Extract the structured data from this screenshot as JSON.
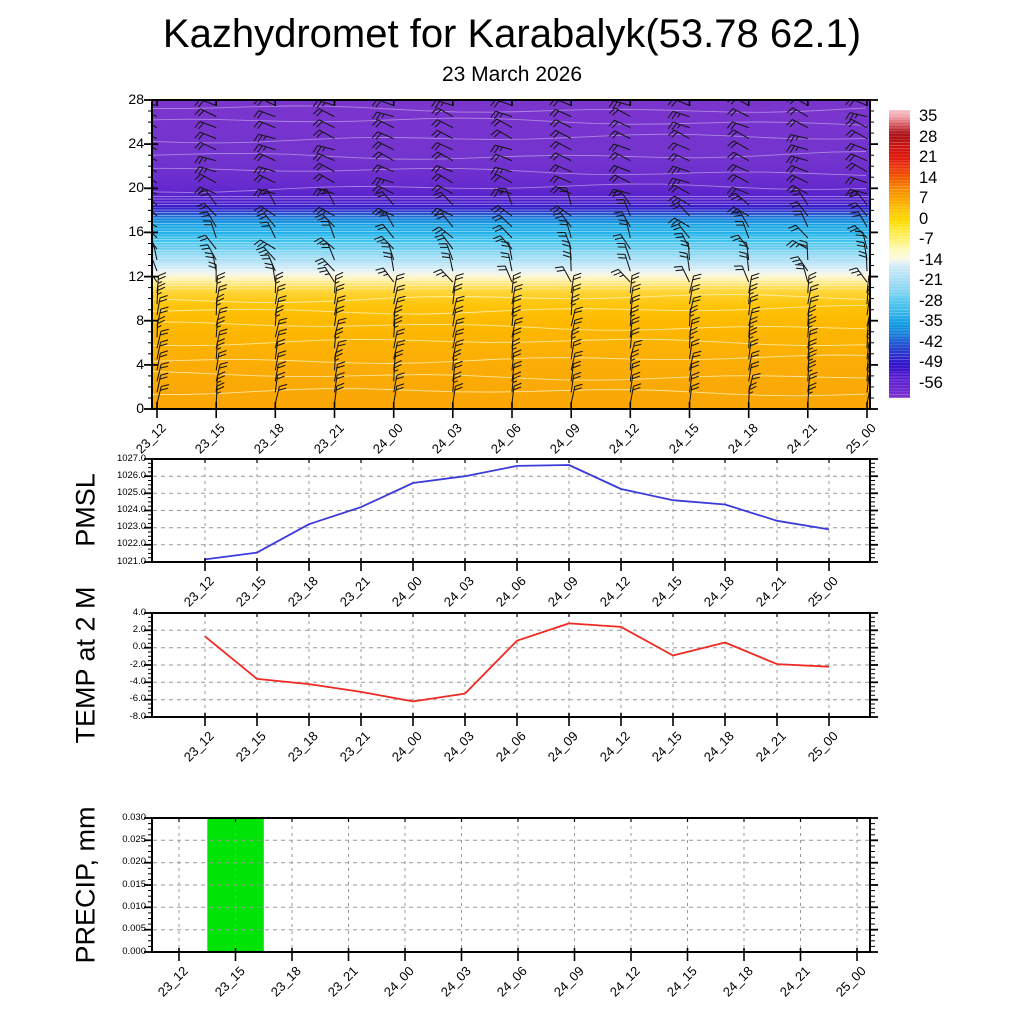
{
  "header": {
    "title": "Kazhydromet for Karabalyk(53.78 62.1)",
    "subtitle": "23 March 2026"
  },
  "time_labels": [
    "23_12",
    "23_15",
    "23_18",
    "23_21",
    "24_00",
    "24_03",
    "24_06",
    "24_09",
    "24_12",
    "24_15",
    "24_18",
    "24_21",
    "25_00"
  ],
  "chart_data": [
    {
      "id": "temperature-wind-profile",
      "type": "heatmap",
      "ylabel": "",
      "ylim": [
        0,
        28
      ],
      "y_tick_labels": [
        "0",
        "4",
        "8",
        "12",
        "16",
        "20",
        "24",
        "28"
      ],
      "y_tick_values": [
        0,
        4,
        8,
        12,
        16,
        20,
        24,
        28
      ],
      "description": "Vertical temperature cross-section (model level vs time) with wind barbs; warm orange/yellow below ~level 11, sharp cold transition levels 12-18, purple above level 19",
      "gradient_stops": [
        {
          "level": 0,
          "color": "#FAA607"
        },
        {
          "level": 4,
          "color": "#FBAD06"
        },
        {
          "level": 8,
          "color": "#FDBA00"
        },
        {
          "level": 9.5,
          "color": "#FEC60D"
        },
        {
          "level": 10.5,
          "color": "#FFD333"
        },
        {
          "level": 11.2,
          "color": "#FFE266"
        },
        {
          "level": 11.7,
          "color": "#FFEFA3"
        },
        {
          "level": 12.05,
          "color": "#FCF7D8"
        },
        {
          "level": 12.4,
          "color": "#EBF3F2"
        },
        {
          "level": 12.9,
          "color": "#C7E8F7"
        },
        {
          "level": 13.7,
          "color": "#9FDCF5"
        },
        {
          "level": 14.5,
          "color": "#6FCFF1"
        },
        {
          "level": 15.3,
          "color": "#3EC2EE"
        },
        {
          "level": 16.1,
          "color": "#1EAFE8"
        },
        {
          "level": 16.75,
          "color": "#159EE2"
        },
        {
          "level": 17.25,
          "color": "#1A80DB"
        },
        {
          "level": 17.65,
          "color": "#2556D3"
        },
        {
          "level": 18.0,
          "color": "#2D30CB"
        },
        {
          "level": 18.35,
          "color": "#3A1CCA"
        },
        {
          "level": 18.9,
          "color": "#4D1DCC"
        },
        {
          "level": 19.5,
          "color": "#5D25CE"
        },
        {
          "level": 20.6,
          "color": "#6A2DCE"
        },
        {
          "level": 23,
          "color": "#7434CE"
        },
        {
          "level": 28,
          "color": "#7B35CD"
        }
      ],
      "contour_line_levels_warm": [
        1.5,
        3,
        4.5,
        6,
        7.5,
        9,
        10
      ],
      "contour_line_levels_cold": [
        20,
        21.5,
        23,
        24.5,
        26,
        27.2
      ],
      "wind_bands": [
        {
          "level_min": 0,
          "level_max": 10.5,
          "staff_angle": 82,
          "tick_angle": -62,
          "jitter_deg": 6
        },
        {
          "level_min": 10.5,
          "level_max": 13.5,
          "staff_angle": 112,
          "tick_angle": 70,
          "jitter_deg": 22
        },
        {
          "level_min": 13.5,
          "level_max": 18.5,
          "staff_angle": 128,
          "tick_angle": 70,
          "jitter_deg": 26
        },
        {
          "level_min": 18.5,
          "level_max": 28,
          "staff_angle": 158,
          "tick_angle": 72,
          "jitter_deg": 9
        }
      ],
      "colorbar": {
        "labels": [
          "35",
          "28",
          "21",
          "14",
          "7",
          "0",
          "-7",
          "-14",
          "-21",
          "-28",
          "-35",
          "-42",
          "-49",
          "-56"
        ],
        "value_top": 37.5,
        "value_bottom": -60.5,
        "stops": [
          {
            "v": 37.5,
            "c": "#F6C3C9"
          },
          {
            "v": 35,
            "c": "#EF9FA6"
          },
          {
            "v": 33,
            "c": "#D96168"
          },
          {
            "v": 31,
            "c": "#C03238"
          },
          {
            "v": 29.5,
            "c": "#AC181D"
          },
          {
            "v": 28,
            "c": "#B01215"
          },
          {
            "v": 25,
            "c": "#CC1313"
          },
          {
            "v": 21,
            "c": "#E31A0D"
          },
          {
            "v": 17.5,
            "c": "#ED3806"
          },
          {
            "v": 14,
            "c": "#F26000"
          },
          {
            "v": 10.5,
            "c": "#F78A00"
          },
          {
            "v": 7,
            "c": "#FCA700"
          },
          {
            "v": 3.5,
            "c": "#FFC100"
          },
          {
            "v": 0,
            "c": "#FFDA00"
          },
          {
            "v": -3.5,
            "c": "#FFE93A"
          },
          {
            "v": -7,
            "c": "#FFF37E"
          },
          {
            "v": -10.5,
            "c": "#FEFABF"
          },
          {
            "v": -13,
            "c": "#FBFBE0"
          },
          {
            "v": -14,
            "c": "#EDF5F2"
          },
          {
            "v": -16,
            "c": "#CDE9F7"
          },
          {
            "v": -21,
            "c": "#A3DDF5"
          },
          {
            "v": -28,
            "c": "#55C8EF"
          },
          {
            "v": -35,
            "c": "#14A0E3"
          },
          {
            "v": -38.5,
            "c": "#127FDA"
          },
          {
            "v": -42,
            "c": "#2358D2"
          },
          {
            "v": -45.5,
            "c": "#2B31CB"
          },
          {
            "v": -49,
            "c": "#2F15CB"
          },
          {
            "v": -52.5,
            "c": "#4C17CE"
          },
          {
            "v": -56,
            "c": "#6524D0"
          },
          {
            "v": -60.5,
            "c": "#7C33CE"
          }
        ]
      }
    },
    {
      "id": "pmsl",
      "type": "line",
      "ylabel": "PMSL",
      "color": "#3B3BDA",
      "ylim": [
        1021,
        1027
      ],
      "y_tick_labels": [
        "1021.0",
        "1022.0",
        "1023.0",
        "1024.0",
        "1025.0",
        "1026.0",
        "1027.0"
      ],
      "y_tick_values": [
        1021,
        1022,
        1023,
        1024,
        1025,
        1026,
        1027
      ],
      "values": [
        1021.15,
        1021.55,
        1023.2,
        1024.2,
        1025.6,
        1026.0,
        1026.6,
        1026.65,
        1025.25,
        1024.6,
        1024.35,
        1023.4,
        1022.9
      ]
    },
    {
      "id": "temp-2m",
      "type": "line",
      "ylabel": "TEMP at 2 M",
      "color": "#EE2A22",
      "ylim": [
        -8,
        4
      ],
      "y_tick_labels": [
        "-8.0",
        "-6.0",
        "-4.0",
        "-2.0",
        "0.0",
        "2.0",
        "4.0"
      ],
      "y_tick_values": [
        -8,
        -6,
        -4,
        -2,
        0,
        2,
        4
      ],
      "values": [
        1.3,
        -3.6,
        -4.2,
        -5.1,
        -6.2,
        -5.3,
        0.8,
        2.8,
        2.4,
        -0.9,
        0.6,
        -1.9,
        -2.2
      ]
    },
    {
      "id": "precip",
      "type": "bar",
      "ylabel": "PRECIP, mm",
      "color": "#00E307",
      "ylim": [
        0,
        0.03
      ],
      "y_tick_labels": [
        "0.000",
        "0.005",
        "0.010",
        "0.015",
        "0.020",
        "0.025",
        "0.030"
      ],
      "y_tick_values": [
        0,
        0.005,
        0.01,
        0.015,
        0.02,
        0.025,
        0.03
      ],
      "values": [
        0,
        0.03,
        0,
        0,
        0,
        0,
        0,
        0,
        0,
        0,
        0,
        0,
        0
      ]
    }
  ]
}
